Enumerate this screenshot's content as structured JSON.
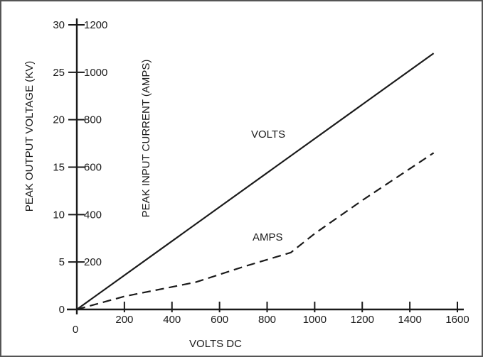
{
  "chart_data": {
    "type": "line",
    "title": "",
    "xlabel": "VOLTS DC",
    "ylabel_left": "PEAK OUTPUT VOLTAGE (KV)",
    "ylabel_right": "PEAK INPUT CURRENT (AMPS)",
    "xlim": [
      0,
      1600
    ],
    "ylim_left": [
      0,
      30
    ],
    "ylim_right": [
      0,
      1200
    ],
    "x_ticks": [
      0,
      200,
      400,
      600,
      800,
      1000,
      1200,
      1400,
      1600
    ],
    "y_left_ticks": [
      0,
      5,
      10,
      15,
      20,
      25,
      30
    ],
    "y_right_ticks": [
      200,
      400,
      600,
      800,
      1000,
      1200
    ],
    "grid": false,
    "series": [
      {
        "name": "VOLTS",
        "axis": "left",
        "style": "solid",
        "x": [
          0,
          1500
        ],
        "y": [
          0,
          27
        ]
      },
      {
        "name": "AMPS",
        "axis": "right",
        "style": "dashed",
        "x": [
          0,
          200,
          500,
          700,
          900,
          1000,
          1200,
          1500
        ],
        "y": [
          0,
          55,
          115,
          180,
          240,
          320,
          460,
          660
        ]
      }
    ]
  }
}
